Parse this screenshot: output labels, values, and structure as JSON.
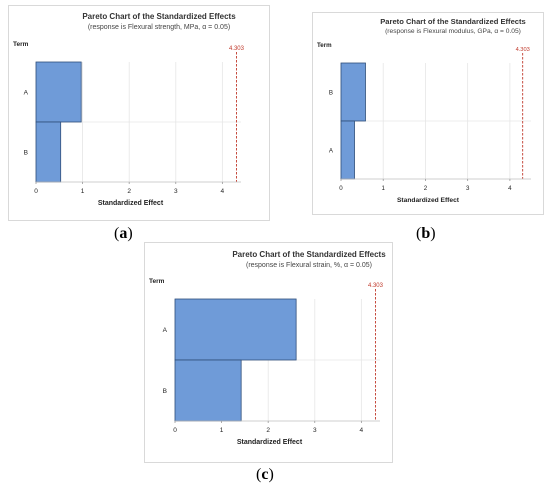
{
  "chart_data": [
    {
      "type": "bar",
      "orientation": "horizontal",
      "panel": "a",
      "title": "Pareto Chart of the Standardized Effects",
      "subtitle": "(response is Flexural strength, MPa, α = 0.05)",
      "ylabel": "Term",
      "xlabel": "Standardized Effect",
      "categories": [
        "A",
        "B"
      ],
      "values": [
        0.97,
        0.53
      ],
      "critical_value": 4.303,
      "critical_label": "4.303",
      "xlim": [
        0,
        4.4
      ],
      "xticks": [
        "0",
        "1",
        "2",
        "3",
        "4"
      ],
      "grid": true,
      "bar_color": "#6f9bd8",
      "ref_color": "#c0392b"
    },
    {
      "type": "bar",
      "orientation": "horizontal",
      "panel": "b",
      "title": "Pareto Chart of the Standardized Effects",
      "subtitle": "(response is Flexural modulus, GPa, α = 0.05)",
      "ylabel": "Term",
      "xlabel": "Standardized Effect",
      "categories": [
        "B",
        "A"
      ],
      "values": [
        0.58,
        0.32
      ],
      "critical_value": 4.303,
      "critical_label": "4.303",
      "xlim": [
        0,
        4.5
      ],
      "xticks": [
        "0",
        "1",
        "2",
        "3",
        "4"
      ],
      "grid": true,
      "bar_color": "#6f9bd8",
      "ref_color": "#c0392b"
    },
    {
      "type": "bar",
      "orientation": "horizontal",
      "panel": "c",
      "title": "Pareto Chart of the Standardized Effects",
      "subtitle": "(response is Flexural strain, %, α = 0.05)",
      "ylabel": "Term",
      "xlabel": "Standardized Effect",
      "categories": [
        "A",
        "B"
      ],
      "values": [
        2.6,
        1.42
      ],
      "critical_value": 4.303,
      "critical_label": "4.303",
      "xlim": [
        0,
        4.4
      ],
      "xticks": [
        "0",
        "1",
        "2",
        "3",
        "4"
      ],
      "grid": true,
      "bar_color": "#6f9bd8",
      "ref_color": "#c0392b"
    }
  ],
  "captions": [
    {
      "letter": "a"
    },
    {
      "letter": "b"
    },
    {
      "letter": "c"
    }
  ]
}
